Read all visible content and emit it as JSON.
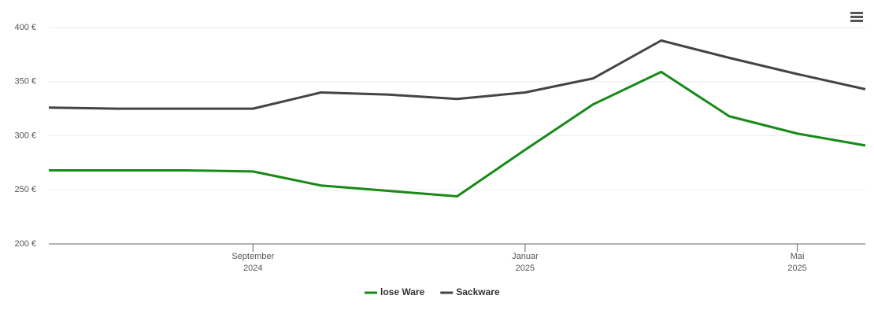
{
  "chart_data": {
    "type": "line",
    "x": [
      "2024-06",
      "2024-07",
      "2024-08",
      "2024-09",
      "2024-10",
      "2024-11",
      "2024-12",
      "2025-01",
      "2025-02",
      "2025-03",
      "2025-04",
      "2025-05",
      "2025-06"
    ],
    "series": [
      {
        "name": "lose Ware",
        "color": "#178a17",
        "values": [
          268,
          268,
          268,
          267,
          254,
          249,
          244,
          287,
          329,
          359,
          318,
          302,
          291
        ]
      },
      {
        "name": "Sackware",
        "color": "#444444",
        "values": [
          326,
          325,
          325,
          325,
          340,
          338,
          334,
          340,
          353,
          388,
          372,
          357,
          343
        ]
      }
    ],
    "xlim": [
      "2024-06",
      "2025-06"
    ],
    "xticks": [
      {
        "value": "2024-09",
        "label": "September 2024"
      },
      {
        "value": "2025-01",
        "label": "Januar 2025"
      },
      {
        "value": "2025-05",
        "label": "Mai 2025"
      }
    ],
    "ylim": [
      200,
      400
    ],
    "yticks": [
      {
        "value": 200,
        "label": "200 €"
      },
      {
        "value": 250,
        "label": "250 €"
      },
      {
        "value": 300,
        "label": "300 €"
      },
      {
        "value": 350,
        "label": "350 €"
      },
      {
        "value": 400,
        "label": "400 €"
      }
    ],
    "grid": true,
    "legend": "bottom"
  }
}
